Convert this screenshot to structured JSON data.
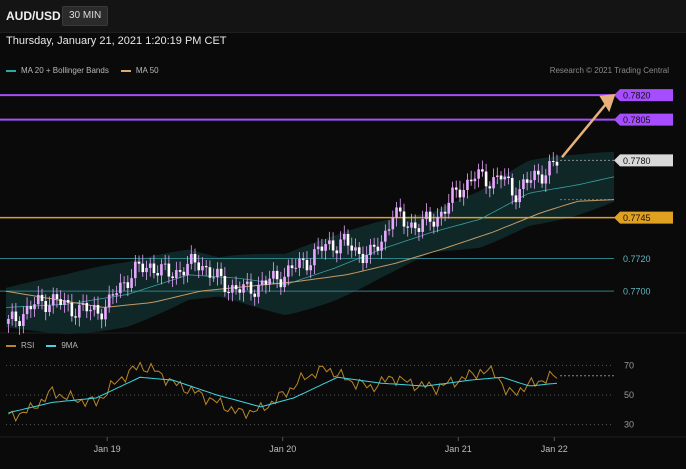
{
  "header": {
    "symbol": "AUD/USD",
    "interval": "30 MIN",
    "timestamp": "Thursday, January 21, 2021 1:20:19 PM CET",
    "credit": "Research © 2021 Trading Central"
  },
  "legend_main": [
    {
      "label": "MA 20 + Bollinger Bands",
      "color": "#2aa8a8"
    },
    {
      "label": "MA 50",
      "color": "#e0a870"
    }
  ],
  "legend_rsi": [
    {
      "label": "RSI",
      "color": "#b8862a"
    },
    {
      "label": "9MA",
      "color": "#3fd6e0"
    }
  ],
  "colors": {
    "resistance": "#a64dff",
    "support": "#e0a020",
    "pivot": "#3aa0a8",
    "candle": "#e9a8ff",
    "bollinger_fill": "#0f2a2a",
    "ma50": "#c79a63",
    "ma20": "#3aa0a0",
    "arrow": "#e8b07a"
  },
  "chart_data": [
    {
      "type": "candlestick",
      "title": "AUD/USD",
      "interval": "30 MIN",
      "ylim": [
        0.7675,
        0.7828
      ],
      "x_tick_labels": [
        "Jan 19",
        "Jan 20",
        "Jan 21",
        "Jan 22"
      ],
      "levels": [
        {
          "label": "0.7820",
          "value": 0.782,
          "kind": "resistance"
        },
        {
          "label": "0.7805",
          "value": 0.7805,
          "kind": "resistance"
        },
        {
          "label": "0.7780",
          "value": 0.778,
          "kind": "pivot"
        },
        {
          "label": "0.7745",
          "value": 0.7745,
          "kind": "support"
        },
        {
          "label": "0.7720",
          "value": 0.772,
          "kind": "line"
        },
        {
          "label": "0.7700",
          "value": 0.77,
          "kind": "line"
        }
      ],
      "series": [
        {
          "name": "Price",
          "anchors": [
            [
              0,
              0.768
            ],
            [
              0.02,
              0.7685
            ],
            [
              0.05,
              0.7692
            ],
            [
              0.08,
              0.7695
            ],
            [
              0.11,
              0.769
            ],
            [
              0.15,
              0.7688
            ],
            [
              0.18,
              0.769
            ],
            [
              0.2,
              0.7702
            ],
            [
              0.23,
              0.7712
            ],
            [
              0.26,
              0.7716
            ],
            [
              0.29,
              0.771
            ],
            [
              0.32,
              0.7714
            ],
            [
              0.35,
              0.7718
            ],
            [
              0.37,
              0.771
            ],
            [
              0.4,
              0.7703
            ],
            [
              0.43,
              0.77
            ],
            [
              0.46,
              0.7704
            ],
            [
              0.49,
              0.7708
            ],
            [
              0.52,
              0.7714
            ],
            [
              0.55,
              0.772
            ],
            [
              0.58,
              0.7728
            ],
            [
              0.61,
              0.773
            ],
            [
              0.63,
              0.7725
            ],
            [
              0.66,
              0.7722
            ],
            [
              0.68,
              0.773
            ],
            [
              0.7,
              0.7748
            ],
            [
              0.72,
              0.7742
            ],
            [
              0.75,
              0.774
            ],
            [
              0.78,
              0.7745
            ],
            [
              0.8,
              0.7752
            ],
            [
              0.82,
              0.7762
            ],
            [
              0.85,
              0.777
            ],
            [
              0.88,
              0.7768
            ],
            [
              0.9,
              0.777
            ],
            [
              0.92,
              0.776
            ],
            [
              0.94,
              0.7765
            ],
            [
              0.97,
              0.7772
            ],
            [
              1.0,
              0.7778
            ]
          ]
        },
        {
          "name": "MA 50",
          "anchors": [
            [
              0,
              0.77
            ],
            [
              0.08,
              0.7695
            ],
            [
              0.16,
              0.769
            ],
            [
              0.24,
              0.7693
            ],
            [
              0.32,
              0.77
            ],
            [
              0.4,
              0.7703
            ],
            [
              0.48,
              0.7706
            ],
            [
              0.56,
              0.771
            ],
            [
              0.64,
              0.7717
            ],
            [
              0.72,
              0.7726
            ],
            [
              0.8,
              0.7736
            ],
            [
              0.88,
              0.7748
            ],
            [
              0.94,
              0.7755
            ],
            [
              1.0,
              0.7756
            ]
          ]
        },
        {
          "name": "MA 20",
          "anchors": [
            [
              0,
              0.769
            ],
            [
              0.1,
              0.7692
            ],
            [
              0.2,
              0.7698
            ],
            [
              0.3,
              0.771
            ],
            [
              0.38,
              0.7708
            ],
            [
              0.46,
              0.7704
            ],
            [
              0.54,
              0.7714
            ],
            [
              0.62,
              0.7726
            ],
            [
              0.7,
              0.7736
            ],
            [
              0.78,
              0.7744
            ],
            [
              0.86,
              0.776
            ],
            [
              0.94,
              0.7765
            ],
            [
              1.0,
              0.777
            ]
          ]
        }
      ]
    },
    {
      "type": "line",
      "title": "RSI",
      "ylim": [
        25,
        75
      ],
      "y_ticks": [
        70,
        50,
        30
      ],
      "series": [
        {
          "name": "RSI",
          "anchors": [
            [
              0,
              35
            ],
            [
              0.04,
              40
            ],
            [
              0.08,
              52
            ],
            [
              0.12,
              47
            ],
            [
              0.16,
              45
            ],
            [
              0.2,
              60
            ],
            [
              0.24,
              70
            ],
            [
              0.27,
              66
            ],
            [
              0.3,
              58
            ],
            [
              0.34,
              52
            ],
            [
              0.38,
              45
            ],
            [
              0.42,
              38
            ],
            [
              0.46,
              40
            ],
            [
              0.5,
              50
            ],
            [
              0.54,
              62
            ],
            [
              0.58,
              68
            ],
            [
              0.62,
              60
            ],
            [
              0.66,
              55
            ],
            [
              0.7,
              62
            ],
            [
              0.74,
              57
            ],
            [
              0.78,
              55
            ],
            [
              0.82,
              60
            ],
            [
              0.86,
              66
            ],
            [
              0.89,
              65
            ],
            [
              0.91,
              50
            ],
            [
              0.94,
              55
            ],
            [
              0.97,
              60
            ],
            [
              1.0,
              63
            ]
          ]
        },
        {
          "name": "9MA",
          "anchors": [
            [
              0,
              38
            ],
            [
              0.08,
              45
            ],
            [
              0.16,
              48
            ],
            [
              0.24,
              62
            ],
            [
              0.3,
              60
            ],
            [
              0.38,
              50
            ],
            [
              0.46,
              42
            ],
            [
              0.52,
              48
            ],
            [
              0.6,
              62
            ],
            [
              0.68,
              58
            ],
            [
              0.76,
              56
            ],
            [
              0.84,
              60
            ],
            [
              0.9,
              62
            ],
            [
              0.95,
              56
            ],
            [
              1.0,
              58
            ]
          ]
        }
      ]
    }
  ]
}
